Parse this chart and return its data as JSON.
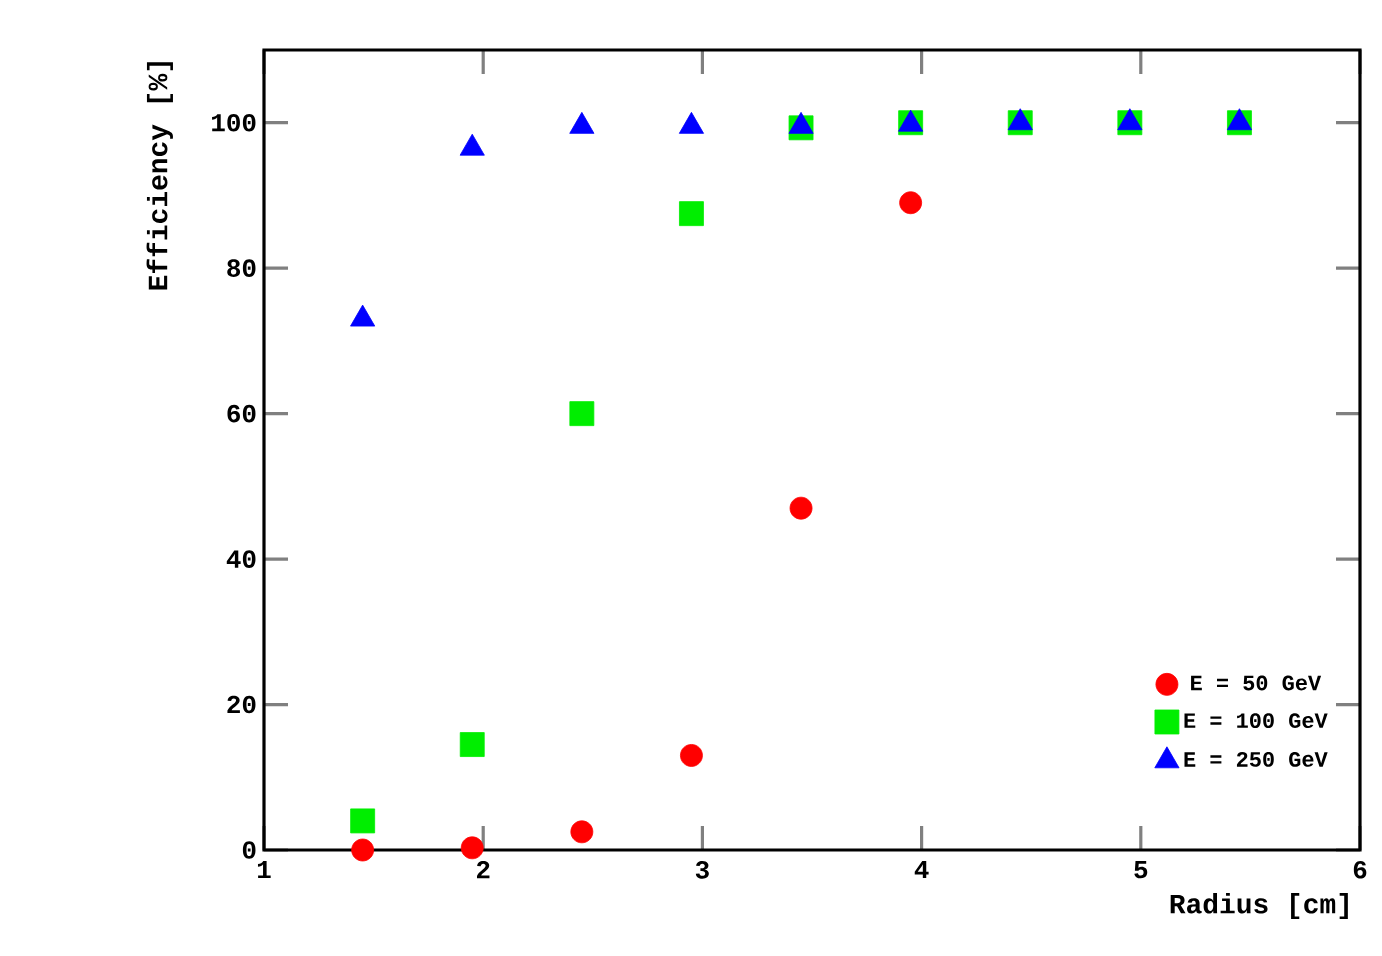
{
  "chart_data": {
    "type": "scatter",
    "xlabel": "Radius [cm]",
    "ylabel": "Efficiency [%]",
    "x": [
      1.45,
      1.95,
      2.45,
      2.95,
      3.45,
      3.95,
      4.45,
      4.95,
      5.45
    ],
    "series": [
      {
        "name": "E = 50 GeV",
        "color": "#ff0000",
        "marker": "circle",
        "values": [
          0,
          0.3,
          2.5,
          13,
          47,
          89,
          null,
          null,
          null
        ]
      },
      {
        "name": "E = 100 GeV",
        "color": "#00ee00",
        "marker": "square",
        "values": [
          4,
          14.5,
          60,
          87.5,
          99.3,
          100,
          100,
          100,
          100
        ]
      },
      {
        "name": "E = 250 GeV",
        "color": "#0000ff",
        "marker": "triangle",
        "values": [
          73,
          96.5,
          99.5,
          99.5,
          99.5,
          99.8,
          100,
          100,
          100
        ]
      }
    ],
    "xlim": [
      1,
      6
    ],
    "ylim": [
      0,
      110
    ],
    "xticks": [
      1,
      2,
      3,
      4,
      5,
      6
    ],
    "yticks": [
      0,
      20,
      40,
      60,
      80,
      100
    ],
    "legend": "bottom right"
  }
}
